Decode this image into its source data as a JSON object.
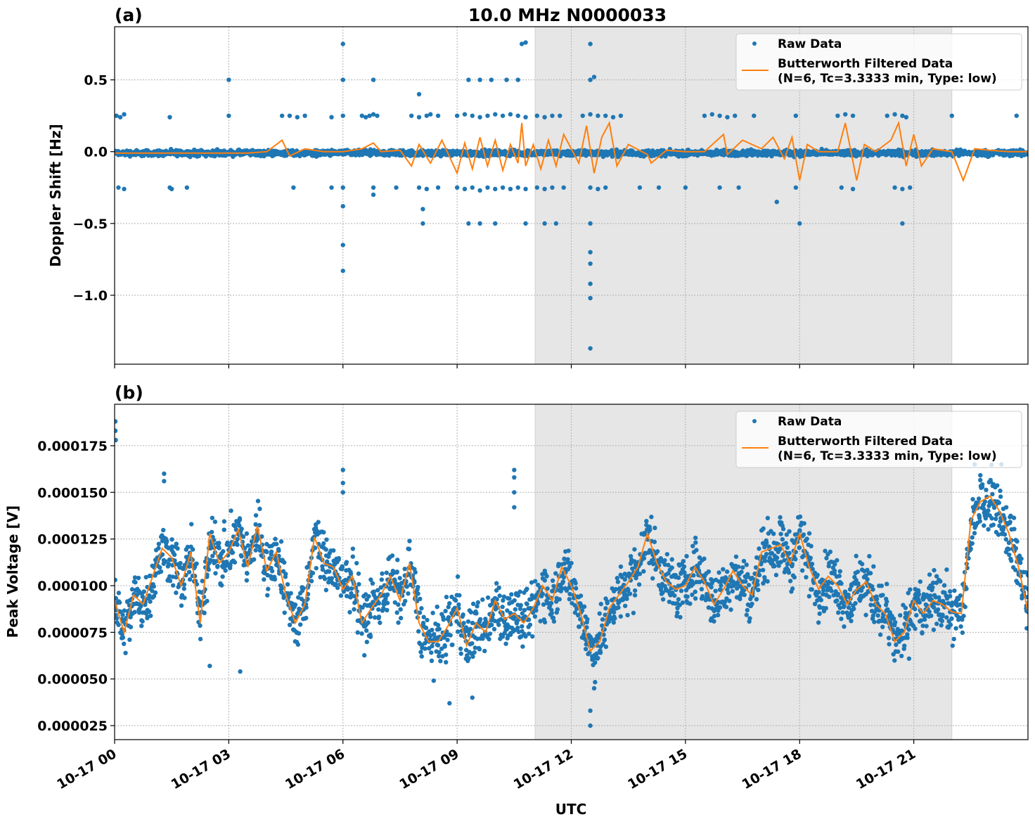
{
  "chart_data": [
    {
      "type": "scatter",
      "panel_label": "(a)",
      "title": "10.0 MHz N0000033",
      "xlabel": "",
      "ylabel": "Doppler Shift [Hz]",
      "x_unit": "hours UTC on 10-17",
      "xlim": [
        0,
        24
      ],
      "ylim": [
        -1.48,
        0.87
      ],
      "yticks": [
        0.5,
        0.0,
        -0.5,
        -1.0
      ],
      "ytick_labels": [
        "0.5",
        "0.0",
        "−0.5",
        "−1.0"
      ],
      "grid": true,
      "legend_placement": "top-right",
      "shaded_region": [
        11.05,
        22.0
      ],
      "raw_band": {
        "center": -0.01,
        "halfwidth": 0.03
      },
      "series": [
        {
          "name": "Raw Data",
          "kind": "points",
          "color": "#1f77b4",
          "outliers": [
            [
              0.05,
              0.25
            ],
            [
              0.15,
              0.24
            ],
            [
              0.25,
              0.26
            ],
            [
              0.1,
              -0.25
            ],
            [
              0.25,
              -0.26
            ],
            [
              1.45,
              0.24
            ],
            [
              1.45,
              -0.25
            ],
            [
              1.5,
              -0.26
            ],
            [
              1.9,
              -0.25
            ],
            [
              3.0,
              0.25
            ],
            [
              3.0,
              0.5
            ],
            [
              4.4,
              0.25
            ],
            [
              4.6,
              0.25
            ],
            [
              4.8,
              0.24
            ],
            [
              5.0,
              0.25
            ],
            [
              4.7,
              -0.25
            ],
            [
              5.7,
              0.24
            ],
            [
              5.7,
              -0.25
            ],
            [
              6.0,
              0.75
            ],
            [
              6.0,
              0.5
            ],
            [
              6.0,
              0.25
            ],
            [
              6.0,
              -0.25
            ],
            [
              6.0,
              -0.38
            ],
            [
              6.0,
              -0.65
            ],
            [
              6.0,
              -0.83
            ],
            [
              6.5,
              0.25
            ],
            [
              6.6,
              0.24
            ],
            [
              6.7,
              0.25
            ],
            [
              6.8,
              0.26
            ],
            [
              6.9,
              0.25
            ],
            [
              6.8,
              0.5
            ],
            [
              6.8,
              -0.25
            ],
            [
              6.8,
              -0.3
            ],
            [
              7.4,
              -0.25
            ],
            [
              7.8,
              0.25
            ],
            [
              8.0,
              0.24
            ],
            [
              8.2,
              0.25
            ],
            [
              8.3,
              0.26
            ],
            [
              8.0,
              0.4
            ],
            [
              8.0,
              -0.25
            ],
            [
              8.2,
              -0.26
            ],
            [
              8.1,
              -0.4
            ],
            [
              8.1,
              -0.5
            ],
            [
              8.5,
              0.25
            ],
            [
              8.5,
              -0.25
            ],
            [
              9.0,
              0.25
            ],
            [
              9.2,
              0.26
            ],
            [
              9.4,
              0.25
            ],
            [
              9.6,
              0.24
            ],
            [
              9.8,
              0.25
            ],
            [
              10.0,
              0.26
            ],
            [
              10.2,
              0.25
            ],
            [
              10.4,
              0.26
            ],
            [
              10.6,
              0.25
            ],
            [
              10.8,
              0.24
            ],
            [
              9.0,
              -0.25
            ],
            [
              9.2,
              -0.26
            ],
            [
              9.4,
              -0.25
            ],
            [
              9.6,
              -0.27
            ],
            [
              9.8,
              -0.25
            ],
            [
              10.0,
              -0.26
            ],
            [
              10.2,
              -0.25
            ],
            [
              10.4,
              -0.26
            ],
            [
              10.6,
              -0.25
            ],
            [
              10.8,
              -0.26
            ],
            [
              9.3,
              0.5
            ],
            [
              9.6,
              0.5
            ],
            [
              9.9,
              0.5
            ],
            [
              10.3,
              0.5
            ],
            [
              9.3,
              -0.5
            ],
            [
              9.6,
              -0.5
            ],
            [
              10.0,
              -0.5
            ],
            [
              10.6,
              0.5
            ],
            [
              10.7,
              0.75
            ],
            [
              10.8,
              0.76
            ],
            [
              10.8,
              -0.5
            ],
            [
              11.1,
              0.25
            ],
            [
              11.3,
              0.24
            ],
            [
              11.5,
              0.25
            ],
            [
              11.7,
              0.25
            ],
            [
              11.1,
              -0.25
            ],
            [
              11.3,
              -0.26
            ],
            [
              11.5,
              -0.25
            ],
            [
              11.8,
              -0.25
            ],
            [
              11.3,
              -0.5
            ],
            [
              11.6,
              -0.5
            ],
            [
              12.3,
              0.25
            ],
            [
              12.5,
              0.26
            ],
            [
              12.7,
              0.25
            ],
            [
              12.9,
              0.25
            ],
            [
              13.1,
              0.24
            ],
            [
              13.3,
              0.25
            ],
            [
              12.5,
              0.5
            ],
            [
              12.6,
              0.52
            ],
            [
              12.5,
              0.75
            ],
            [
              12.5,
              -0.25
            ],
            [
              12.7,
              -0.26
            ],
            [
              12.9,
              -0.25
            ],
            [
              12.5,
              -0.5
            ],
            [
              12.5,
              -0.7
            ],
            [
              12.5,
              -0.78
            ],
            [
              12.5,
              -0.92
            ],
            [
              12.5,
              -1.02
            ],
            [
              12.5,
              -1.37
            ],
            [
              13.8,
              -0.25
            ],
            [
              14.3,
              -0.25
            ],
            [
              15.0,
              -0.25
            ],
            [
              15.5,
              0.25
            ],
            [
              15.7,
              0.26
            ],
            [
              15.9,
              0.25
            ],
            [
              16.1,
              0.24
            ],
            [
              16.3,
              0.25
            ],
            [
              15.9,
              -0.25
            ],
            [
              16.4,
              -0.25
            ],
            [
              16.8,
              0.25
            ],
            [
              17.4,
              -0.35
            ],
            [
              17.9,
              0.25
            ],
            [
              17.9,
              -0.25
            ],
            [
              18.0,
              -0.5
            ],
            [
              19.0,
              0.25
            ],
            [
              19.2,
              0.26
            ],
            [
              19.4,
              0.25
            ],
            [
              19.1,
              -0.25
            ],
            [
              19.4,
              -0.26
            ],
            [
              20.3,
              0.25
            ],
            [
              20.5,
              0.26
            ],
            [
              20.7,
              0.25
            ],
            [
              20.8,
              0.24
            ],
            [
              20.5,
              -0.25
            ],
            [
              20.7,
              -0.26
            ],
            [
              20.9,
              -0.25
            ],
            [
              20.7,
              -0.5
            ],
            [
              22.0,
              0.25
            ],
            [
              23.7,
              0.25
            ]
          ]
        },
        {
          "name": "Butterworth Filtered Data\n(N=6, Tc=3.3333 min, Type: low)",
          "kind": "line",
          "color": "#ff7f0e",
          "x": [
            0,
            0.5,
            1,
            1.5,
            2,
            2.5,
            3,
            3.5,
            4,
            4.4,
            4.6,
            5,
            5.5,
            6,
            6.5,
            6.8,
            7,
            7.5,
            7.8,
            8,
            8.3,
            8.6,
            9,
            9.2,
            9.4,
            9.6,
            9.8,
            10,
            10.2,
            10.4,
            10.6,
            10.7,
            10.8,
            11,
            11.2,
            11.4,
            11.6,
            11.8,
            12,
            12.2,
            12.4,
            12.6,
            12.8,
            13.0,
            13.2,
            13.5,
            14,
            14.1,
            14.5,
            15,
            15.5,
            16,
            16.1,
            16.5,
            17,
            17.3,
            17.6,
            17.8,
            18,
            18.2,
            18.5,
            19,
            19.2,
            19.5,
            19.7,
            20,
            20.4,
            20.6,
            20.8,
            21.0,
            21.2,
            21.5,
            22,
            22.3,
            22.6,
            23,
            23.5,
            24
          ],
          "y": [
            -0.01,
            -0.01,
            -0.01,
            -0.01,
            -0.01,
            -0.01,
            -0.01,
            -0.01,
            0.0,
            0.08,
            -0.03,
            0.02,
            0.0,
            0.0,
            0.02,
            0.06,
            0.0,
            0.01,
            -0.1,
            0.05,
            -0.08,
            0.08,
            -0.15,
            0.06,
            -0.12,
            0.1,
            -0.1,
            0.08,
            -0.13,
            0.05,
            -0.08,
            0.2,
            -0.1,
            0.05,
            -0.12,
            0.08,
            -0.1,
            0.12,
            0.02,
            -0.08,
            0.18,
            -0.15,
            0.1,
            0.2,
            -0.1,
            0.05,
            -0.02,
            -0.08,
            0.01,
            0.0,
            0.0,
            0.12,
            -0.02,
            0.08,
            0.02,
            0.1,
            -0.05,
            0.1,
            -0.2,
            0.05,
            0.0,
            0.0,
            0.2,
            -0.2,
            0.05,
            0.0,
            0.08,
            0.2,
            -0.1,
            0.12,
            -0.1,
            0.02,
            0.0,
            -0.2,
            0.02,
            0.01,
            0.0,
            0.0
          ]
        }
      ]
    },
    {
      "type": "scatter",
      "panel_label": "(b)",
      "xlabel": "UTC",
      "ylabel": "Peak Voltage [V]",
      "x_unit": "hours UTC on 10-17",
      "xlim": [
        0,
        24
      ],
      "ylim": [
        1.75e-05,
        0.0001972
      ],
      "yticks": [
        2.5e-05,
        5e-05,
        7.5e-05,
        0.0001,
        0.000125,
        0.00015,
        0.000175
      ],
      "ytick_labels": [
        "0.000025",
        "0.000050",
        "0.000075",
        "0.000100",
        "0.000125",
        "0.000150",
        "0.000175"
      ],
      "xticks": [
        0,
        3,
        6,
        9,
        12,
        15,
        18,
        21
      ],
      "xtick_labels": [
        "10-17 00",
        "10-17 03",
        "10-17 06",
        "10-17 09",
        "10-17 12",
        "10-17 15",
        "10-17 18",
        "10-17 21"
      ],
      "grid": true,
      "legend_placement": "top-right",
      "shaded_region": [
        11.05,
        22.0
      ],
      "raw_band": {
        "halfwidth": 2e-05
      },
      "series": [
        {
          "name": "Raw Data",
          "kind": "points",
          "color": "#1f77b4",
          "outliers": [
            [
              0.02,
              0.000188
            ],
            [
              0.02,
              0.000183
            ],
            [
              0.03,
              0.000178
            ],
            [
              1.3,
              0.00016
            ],
            [
              1.3,
              0.000156
            ],
            [
              2.5,
              5.7e-05
            ],
            [
              3.3,
              5.4e-05
            ],
            [
              6.0,
              0.000162
            ],
            [
              6.0,
              0.000155
            ],
            [
              6.0,
              0.00015
            ],
            [
              8.8,
              3.7e-05
            ],
            [
              9.4,
              4e-05
            ],
            [
              10.5,
              0.000162
            ],
            [
              10.5,
              0.000158
            ],
            [
              10.5,
              0.00015
            ],
            [
              10.5,
              0.000142
            ],
            [
              12.5,
              2.5e-05
            ],
            [
              12.5,
              3.3e-05
            ],
            [
              12.6,
              4.5e-05
            ],
            [
              22.6,
              0.000165
            ],
            [
              23.3,
              0.000165
            ]
          ]
        },
        {
          "name": "Butterworth Filtered Data\n(N=6, Tc=3.3333 min, Type: low)",
          "kind": "line",
          "color": "#ff7f0e",
          "x": [
            0,
            0.25,
            0.5,
            0.75,
            1,
            1.25,
            1.5,
            1.75,
            2,
            2.25,
            2.5,
            2.75,
            3,
            3.25,
            3.5,
            3.75,
            4,
            4.25,
            4.5,
            4.75,
            5,
            5.25,
            5.5,
            5.75,
            6,
            6.25,
            6.5,
            6.75,
            7,
            7.25,
            7.5,
            7.75,
            8,
            8.25,
            8.5,
            8.75,
            9,
            9.25,
            9.5,
            9.75,
            10,
            10.25,
            10.5,
            10.75,
            11,
            11.25,
            11.5,
            11.75,
            12,
            12.25,
            12.5,
            12.75,
            13,
            13.25,
            13.5,
            13.75,
            14,
            14.25,
            14.5,
            14.75,
            15,
            15.25,
            15.5,
            15.75,
            16,
            16.25,
            16.5,
            16.75,
            17,
            17.25,
            17.5,
            17.75,
            18,
            18.25,
            18.5,
            18.75,
            19,
            19.25,
            19.5,
            19.75,
            20,
            20.25,
            20.5,
            20.75,
            21,
            21.25,
            21.5,
            21.75,
            22,
            22.25,
            22.5,
            22.75,
            23,
            23.25,
            23.5,
            23.75,
            24
          ],
          "y": [
            9.2e-05,
            7.5e-05,
            9.5e-05,
            9e-05,
            0.000105,
            0.00012,
            0.000115,
            0.0001,
            0.000118,
            8e-05,
            0.000128,
            0.000112,
            0.000118,
            0.00013,
            0.00011,
            0.000132,
            0.000108,
            0.000118,
            9.5e-05,
            8e-05,
            9e-05,
            0.000126,
            0.000112,
            0.00011,
            9.8e-05,
            0.000105,
            8e-05,
            8.8e-05,
            9.5e-05,
            0.000105,
            9.2e-05,
            0.000112,
            8e-05,
            7e-05,
            7e-05,
            7.8e-05,
            8.8e-05,
            6.8e-05,
            8e-05,
            7.5e-05,
            9.2e-05,
            8.2e-05,
            8.5e-05,
            8e-05,
            8.8e-05,
            0.0001,
            9.2e-05,
            0.00011,
            0.0001,
            8.5e-05,
            6.5e-05,
            7e-05,
            8.8e-05,
            9.5e-05,
            0.000102,
            0.00011,
            0.000128,
            0.000112,
            0.000102,
            9.8e-05,
            0.0001,
            0.00011,
            0.000102,
            9e-05,
            9.8e-05,
            0.000108,
            0.0001,
            9.5e-05,
            0.000118,
            0.00012,
            0.000122,
            0.000112,
            0.000128,
            0.00011,
            9.8e-05,
            0.000105,
            0.0001,
            9e-05,
            9.8e-05,
            0.000102,
            9e-05,
            8.5e-05,
            7e-05,
            7.5e-05,
            9.2e-05,
            8.5e-05,
            9.2e-05,
            9e-05,
            8.6e-05,
            8.5e-05,
            0.000135,
            0.000145,
            0.000148,
            0.00014,
            0.000128,
            0.00011,
            8.6e-05
          ]
        }
      ]
    }
  ],
  "legend": {
    "raw_label": "Raw Data",
    "filtered_label_line1": "Butterworth Filtered Data",
    "filtered_label_line2": "(N=6, Tc=3.3333 min, Type: low)"
  },
  "colors": {
    "raw": "#1f77b4",
    "filtered": "#ff7f0e",
    "shade": "#e6e6e6"
  }
}
